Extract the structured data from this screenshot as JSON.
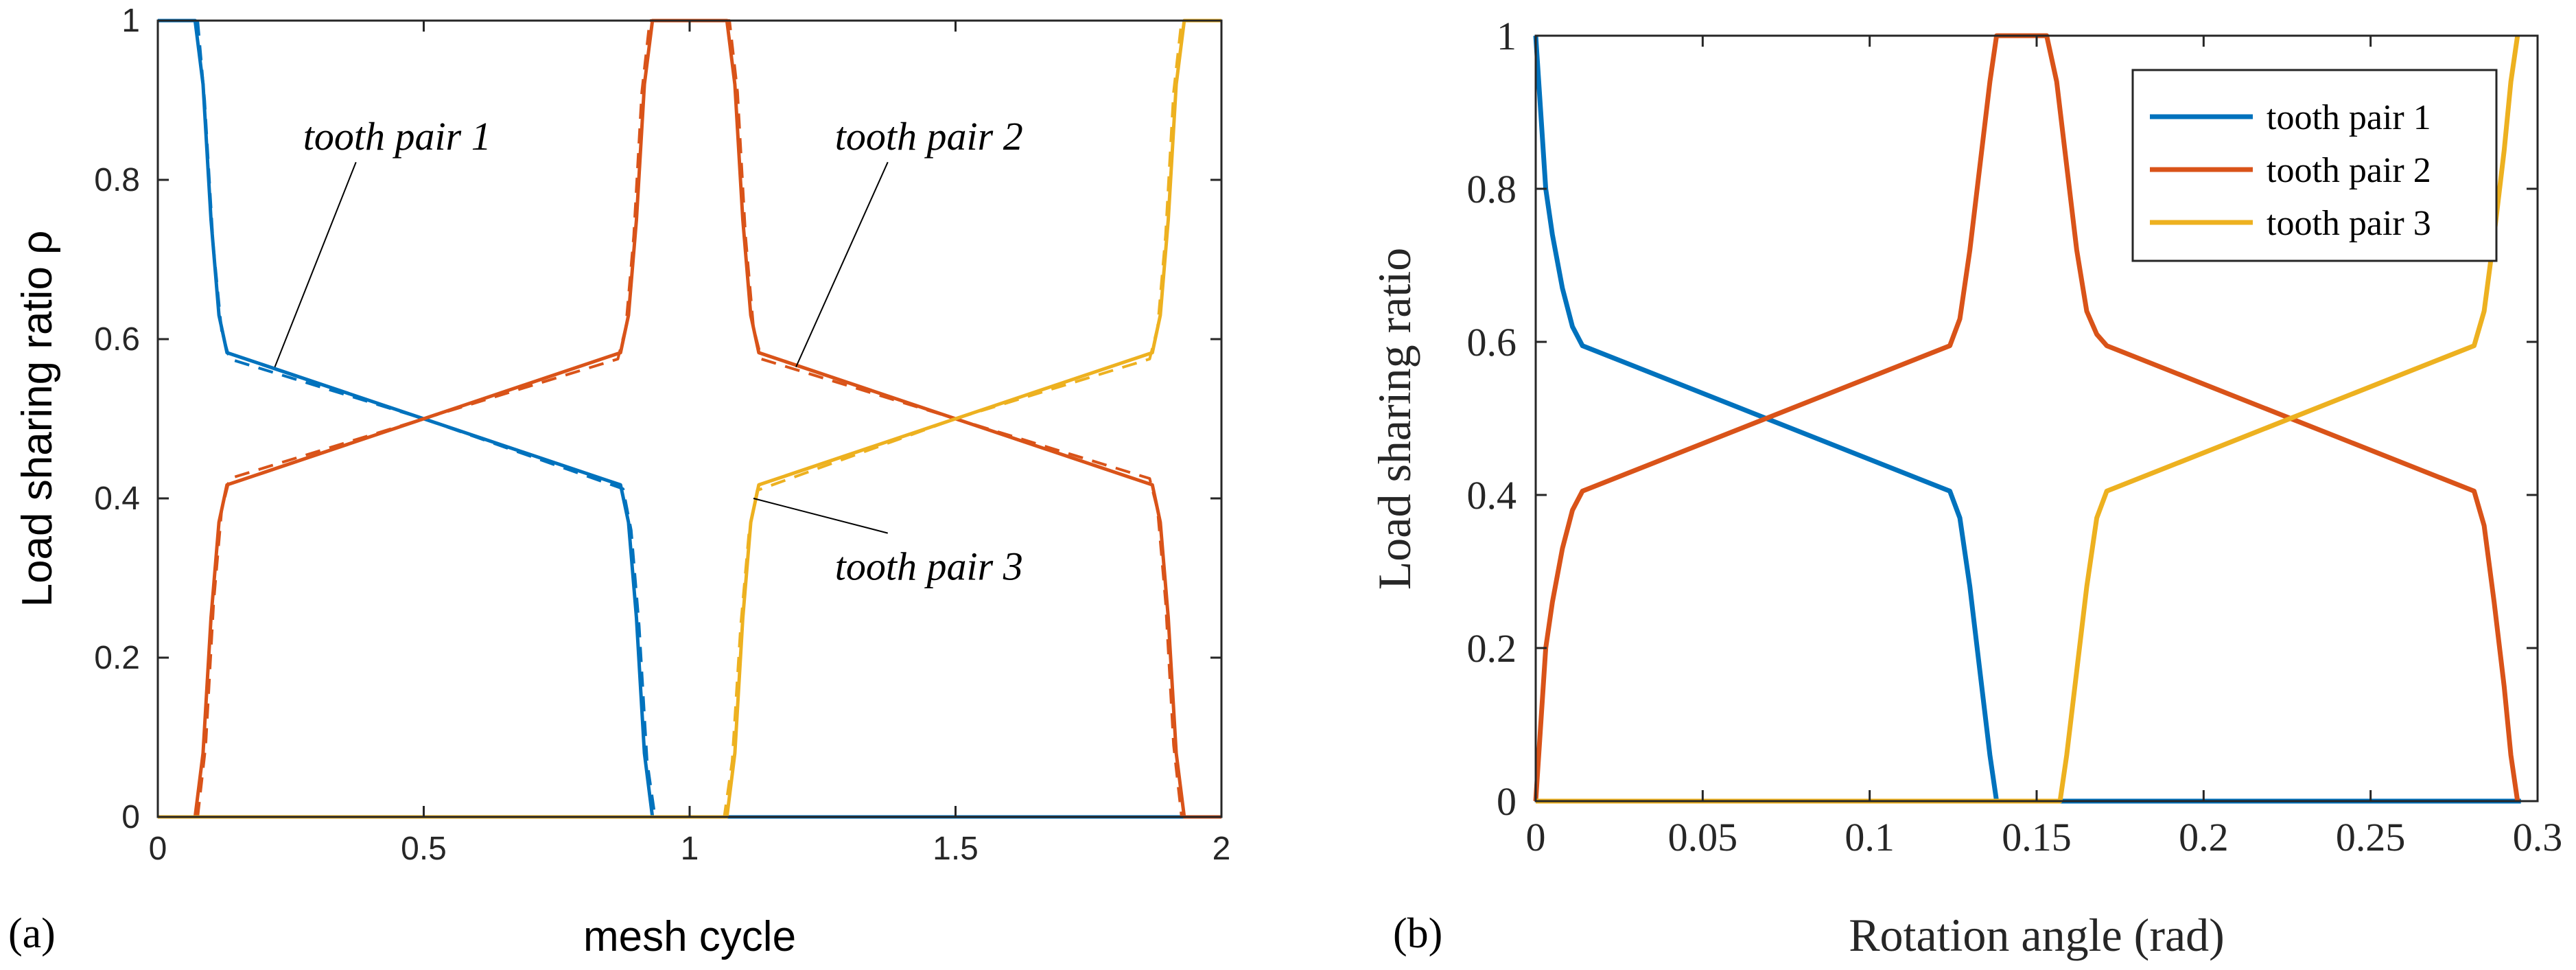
{
  "chart_data": [
    {
      "type": "line",
      "panel_label": "(a)",
      "xlabel": "mesh cycle",
      "ylabel": "Load sharing ratio ρ",
      "xlim": [
        0,
        2
      ],
      "ylim": [
        0,
        1
      ],
      "xticks": [
        "0",
        "0.5",
        "1",
        "1.5",
        "2"
      ],
      "yticks": [
        "0",
        "0.2",
        "0.4",
        "0.6",
        "0.8",
        "1"
      ],
      "colors": [
        "#0072BD",
        "#D95319",
        "#EDB120"
      ],
      "annotations": [
        {
          "text": "tooth pair 1",
          "text_at": [
            0.45,
            0.855
          ],
          "point": [
            0.22,
            0.565
          ]
        },
        {
          "text": "tooth pair 2",
          "text_at": [
            1.45,
            0.855
          ],
          "point": [
            1.2,
            0.565
          ]
        },
        {
          "text": "tooth pair 3",
          "text_at": [
            1.45,
            0.315
          ],
          "point": [
            1.12,
            0.4
          ]
        }
      ],
      "series": [
        {
          "name": "tooth pair 1",
          "style": "solid",
          "color_index": 0,
          "x": [
            0,
            0.07,
            0.085,
            0.1,
            0.115,
            0.13,
            0.5,
            0.87,
            0.885,
            0.9,
            0.915,
            0.93,
            1.0,
            2.0
          ],
          "y": [
            1,
            1,
            0.92,
            0.75,
            0.63,
            0.583,
            0.5,
            0.417,
            0.37,
            0.25,
            0.08,
            0,
            0,
            0
          ]
        },
        {
          "name": "tooth pair 1 (dashed)",
          "style": "dashed",
          "color_index": 0,
          "x": [
            0.075,
            0.088,
            0.104,
            0.12,
            0.135,
            0.5,
            0.875,
            0.89,
            0.905,
            0.92,
            0.935,
            0.94
          ],
          "y": [
            1,
            0.9,
            0.72,
            0.61,
            0.575,
            0.5,
            0.412,
            0.36,
            0.24,
            0.07,
            0,
            0
          ]
        },
        {
          "name": "tooth pair 2",
          "style": "solid",
          "color_index": 1,
          "x": [
            0,
            0.07,
            0.085,
            0.1,
            0.115,
            0.13,
            0.5,
            0.87,
            0.885,
            0.9,
            0.915,
            0.93,
            1.07,
            1.085,
            1.1,
            1.115,
            1.13,
            1.5,
            1.87,
            1.885,
            1.9,
            1.915,
            1.93,
            2.0
          ],
          "y": [
            0,
            0,
            0.08,
            0.25,
            0.37,
            0.417,
            0.5,
            0.583,
            0.63,
            0.75,
            0.92,
            1,
            1,
            0.92,
            0.75,
            0.63,
            0.583,
            0.5,
            0.417,
            0.37,
            0.25,
            0.08,
            0,
            0
          ]
        },
        {
          "name": "tooth pair 2 (dashed)",
          "style": "dashed",
          "color_index": 1,
          "x": [
            0.075,
            0.09,
            0.105,
            0.12,
            0.135,
            0.5,
            0.865,
            0.88,
            0.895,
            0.91,
            0.925,
            1.075,
            1.09,
            1.105,
            1.12,
            1.135,
            1.5,
            1.865,
            1.88,
            1.895,
            1.91,
            1.925
          ],
          "y": [
            0,
            0.09,
            0.27,
            0.385,
            0.425,
            0.5,
            0.575,
            0.615,
            0.73,
            0.91,
            1,
            1,
            0.91,
            0.73,
            0.615,
            0.575,
            0.5,
            0.425,
            0.385,
            0.27,
            0.09,
            0
          ]
        },
        {
          "name": "tooth pair 3",
          "style": "solid",
          "color_index": 2,
          "x": [
            0,
            1.07,
            1.085,
            1.1,
            1.115,
            1.13,
            1.5,
            1.87,
            1.885,
            1.9,
            1.915,
            1.93,
            2.0
          ],
          "y": [
            0,
            0,
            0.08,
            0.25,
            0.37,
            0.417,
            0.5,
            0.583,
            0.63,
            0.75,
            0.92,
            1,
            1
          ]
        },
        {
          "name": "tooth pair 3 (dashed)",
          "style": "dashed",
          "color_index": 2,
          "x": [
            1.06,
            1.065,
            1.08,
            1.096,
            1.112,
            1.127,
            1.5,
            1.865,
            1.88,
            1.895,
            1.91,
            1.925
          ],
          "y": [
            0,
            0,
            0.07,
            0.24,
            0.36,
            0.41,
            0.5,
            0.575,
            0.615,
            0.73,
            0.91,
            1
          ]
        }
      ]
    },
    {
      "type": "line",
      "panel_label": "(b)",
      "xlabel": "Rotation angle (rad)",
      "ylabel": "Load sharing ratio",
      "xlim": [
        0,
        0.3
      ],
      "ylim": [
        0,
        1
      ],
      "xticks": [
        "0",
        "0.05",
        "0.1",
        "0.15",
        "0.2",
        "0.25",
        "0.3"
      ],
      "yticks": [
        "0",
        "0.2",
        "0.4",
        "0.6",
        "0.8",
        "1"
      ],
      "colors": [
        "#0072BD",
        "#D95319",
        "#EDB120"
      ],
      "legend": {
        "position": "top-right",
        "entries": [
          "tooth pair 1",
          "tooth pair 2",
          "tooth pair 3"
        ]
      },
      "series": [
        {
          "name": "tooth pair 1",
          "color_index": 0,
          "x": [
            0,
            0.0015,
            0.003,
            0.005,
            0.008,
            0.011,
            0.014,
            0.124,
            0.127,
            0.13,
            0.133,
            0.136,
            0.138,
            0.295
          ],
          "y": [
            1,
            0.9,
            0.8,
            0.74,
            0.67,
            0.62,
            0.595,
            0.405,
            0.37,
            0.28,
            0.17,
            0.06,
            0,
            0
          ]
        },
        {
          "name": "tooth pair 2",
          "color_index": 1,
          "x": [
            0,
            0.0015,
            0.003,
            0.005,
            0.008,
            0.011,
            0.014,
            0.124,
            0.127,
            0.13,
            0.133,
            0.136,
            0.138,
            0.153,
            0.156,
            0.159,
            0.162,
            0.165,
            0.168,
            0.171,
            0.281,
            0.284,
            0.287,
            0.29,
            0.292,
            0.294
          ],
          "y": [
            0,
            0.1,
            0.2,
            0.26,
            0.33,
            0.38,
            0.405,
            0.595,
            0.63,
            0.72,
            0.83,
            0.94,
            1,
            1,
            0.94,
            0.83,
            0.72,
            0.64,
            0.61,
            0.595,
            0.405,
            0.36,
            0.26,
            0.15,
            0.06,
            0
          ]
        },
        {
          "name": "tooth pair 3",
          "color_index": 2,
          "x": [
            0,
            0.157,
            0.159,
            0.162,
            0.165,
            0.168,
            0.171,
            0.281,
            0.284,
            0.287,
            0.29,
            0.292,
            0.294
          ],
          "y": [
            0,
            0,
            0.06,
            0.17,
            0.28,
            0.37,
            0.405,
            0.595,
            0.64,
            0.74,
            0.85,
            0.94,
            1
          ]
        }
      ]
    }
  ]
}
